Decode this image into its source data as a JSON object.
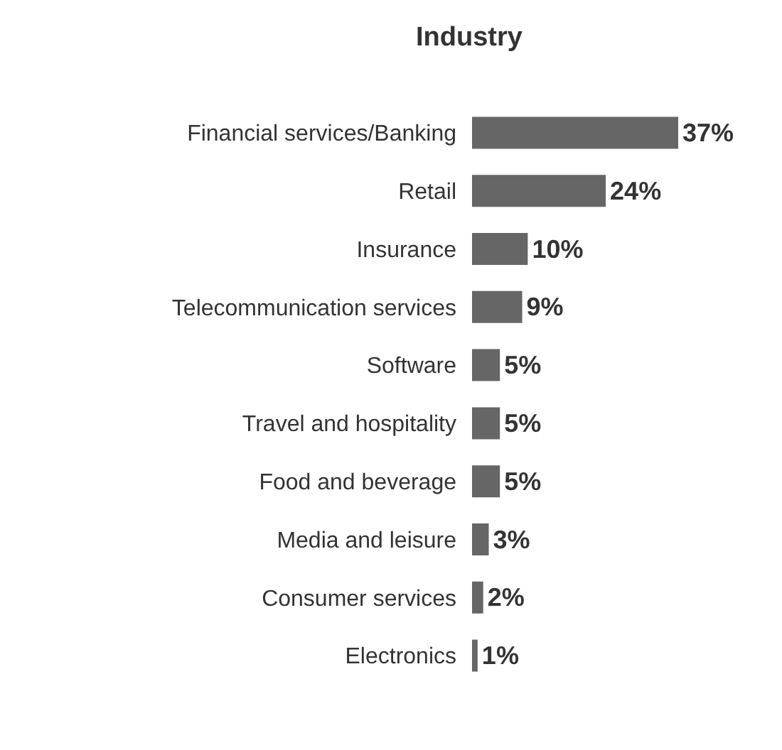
{
  "chart_data": {
    "type": "bar",
    "orientation": "horizontal",
    "title": "Industry",
    "categories": [
      "Financial services/Banking",
      "Retail",
      "Insurance",
      "Telecommunication services",
      "Software",
      "Travel and hospitality",
      "Food and beverage",
      "Media and leisure",
      "Consumer services",
      "Electronics"
    ],
    "values": [
      37,
      24,
      10,
      9,
      5,
      5,
      5,
      3,
      2,
      1
    ],
    "value_labels": [
      "37%",
      "24%",
      "10%",
      "9%",
      "5%",
      "5%",
      "5%",
      "3%",
      "2%",
      "1%"
    ],
    "color": "#666666",
    "xlim": [
      0,
      37
    ],
    "tick_labels": "y"
  }
}
